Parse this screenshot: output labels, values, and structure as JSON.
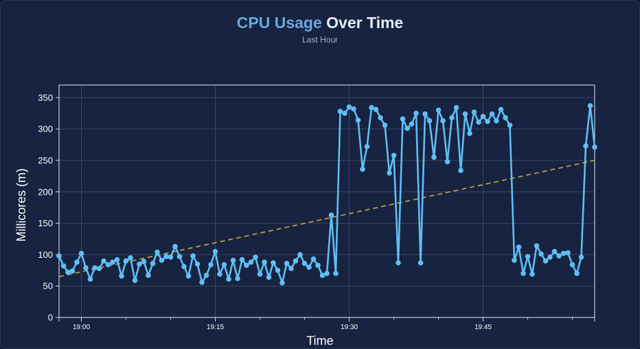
{
  "header": {
    "title_part1": "CPU Usage",
    "title_part2": "Over Time",
    "subtitle": "Last Hour"
  },
  "colors": {
    "background": "#172340",
    "series": "#5fbef5",
    "trend": "#b8a040",
    "grid": "#3a4866",
    "title_accent": "#6aa6e0"
  },
  "chart_data": {
    "type": "line",
    "title": "CPU Usage Over Time",
    "subtitle": "Last Hour",
    "xlabel": "Time",
    "ylabel": "Millicores (m)",
    "x_ticks": [
      "19:00",
      "19:15",
      "19:30",
      "19:45"
    ],
    "y_ticks": [
      0,
      50,
      100,
      150,
      200,
      250,
      300,
      350
    ],
    "x_range": [
      "18:57:30",
      "19:57:30"
    ],
    "ylim": [
      0,
      370
    ],
    "grid": true,
    "legend": "none",
    "series": [
      {
        "role": "data",
        "x": [
          "18:57:30",
          "18:58:00",
          "18:58:30",
          "18:59:00",
          "18:59:30",
          "19:00:00",
          "19:00:30",
          "19:01:00",
          "19:01:30",
          "19:02:00",
          "19:02:30",
          "19:03:00",
          "19:03:30",
          "19:04:00",
          "19:04:30",
          "19:05:00",
          "19:05:30",
          "19:06:00",
          "19:06:30",
          "19:07:00",
          "19:07:30",
          "19:08:00",
          "19:08:30",
          "19:09:00",
          "19:09:30",
          "19:10:00",
          "19:10:30",
          "19:11:00",
          "19:11:30",
          "19:12:00",
          "19:12:30",
          "19:13:00",
          "19:13:30",
          "19:14:00",
          "19:14:30",
          "19:15:00",
          "19:15:30",
          "19:16:00",
          "19:16:30",
          "19:17:00",
          "19:17:30",
          "19:18:00",
          "19:18:30",
          "19:19:00",
          "19:19:30",
          "19:20:00",
          "19:20:30",
          "19:21:00",
          "19:21:30",
          "19:22:00",
          "19:22:30",
          "19:23:00",
          "19:23:30",
          "19:24:00",
          "19:24:30",
          "19:25:00",
          "19:25:30",
          "19:26:00",
          "19:26:30",
          "19:27:00",
          "19:27:30",
          "19:28:00",
          "19:28:30",
          "19:29:00",
          "19:29:30",
          "19:30:00",
          "19:30:30",
          "19:31:00",
          "19:31:30",
          "19:32:00",
          "19:32:30",
          "19:33:00",
          "19:33:30",
          "19:34:00",
          "19:34:30",
          "19:35:00",
          "19:35:30",
          "19:36:00",
          "19:36:30",
          "19:37:00",
          "19:37:30",
          "19:38:00",
          "19:38:30",
          "19:39:00",
          "19:39:30",
          "19:40:00",
          "19:40:30",
          "19:41:00",
          "19:41:30",
          "19:42:00",
          "19:42:30",
          "19:43:00",
          "19:43:30",
          "19:44:00",
          "19:44:30",
          "19:45:00",
          "19:45:30",
          "19:46:00",
          "19:46:30",
          "19:47:00",
          "19:47:30",
          "19:48:00",
          "19:48:30",
          "19:49:00",
          "19:49:30",
          "19:50:00",
          "19:50:30",
          "19:51:00",
          "19:51:30",
          "19:52:00",
          "19:52:30",
          "19:53:00",
          "19:53:30",
          "19:54:00",
          "19:54:30",
          "19:55:00",
          "19:55:30",
          "19:56:00",
          "19:56:30",
          "19:57:00",
          "19:57:30"
        ],
        "values": [
          98,
          82,
          72,
          74,
          88,
          102,
          79,
          61,
          79,
          78,
          90,
          84,
          88,
          92,
          66,
          90,
          95,
          59,
          85,
          89,
          67,
          86,
          104,
          91,
          97,
          96,
          113,
          97,
          81,
          66,
          98,
          85,
          56,
          67,
          84,
          105,
          69,
          84,
          61,
          91,
          62,
          92,
          83,
          88,
          96,
          69,
          88,
          64,
          87,
          75,
          55,
          86,
          78,
          90,
          100,
          86,
          80,
          93,
          83,
          67,
          70,
          163,
          70,
          328,
          325,
          335,
          332,
          314,
          236,
          272,
          334,
          331,
          318,
          306,
          230,
          258,
          87,
          316,
          301,
          308,
          325,
          87,
          324,
          313,
          255,
          330,
          313,
          248,
          318,
          334,
          234,
          324,
          293,
          327,
          311,
          320,
          312,
          324,
          313,
          331,
          318,
          306,
          91,
          112,
          70,
          97,
          69,
          114,
          101,
          90,
          96,
          105,
          98,
          102,
          103,
          84,
          70,
          96,
          273,
          337,
          271
        ]
      },
      {
        "role": "trend",
        "x": [
          "18:57:30",
          "19:57:30"
        ],
        "values": [
          65,
          250
        ]
      }
    ]
  }
}
